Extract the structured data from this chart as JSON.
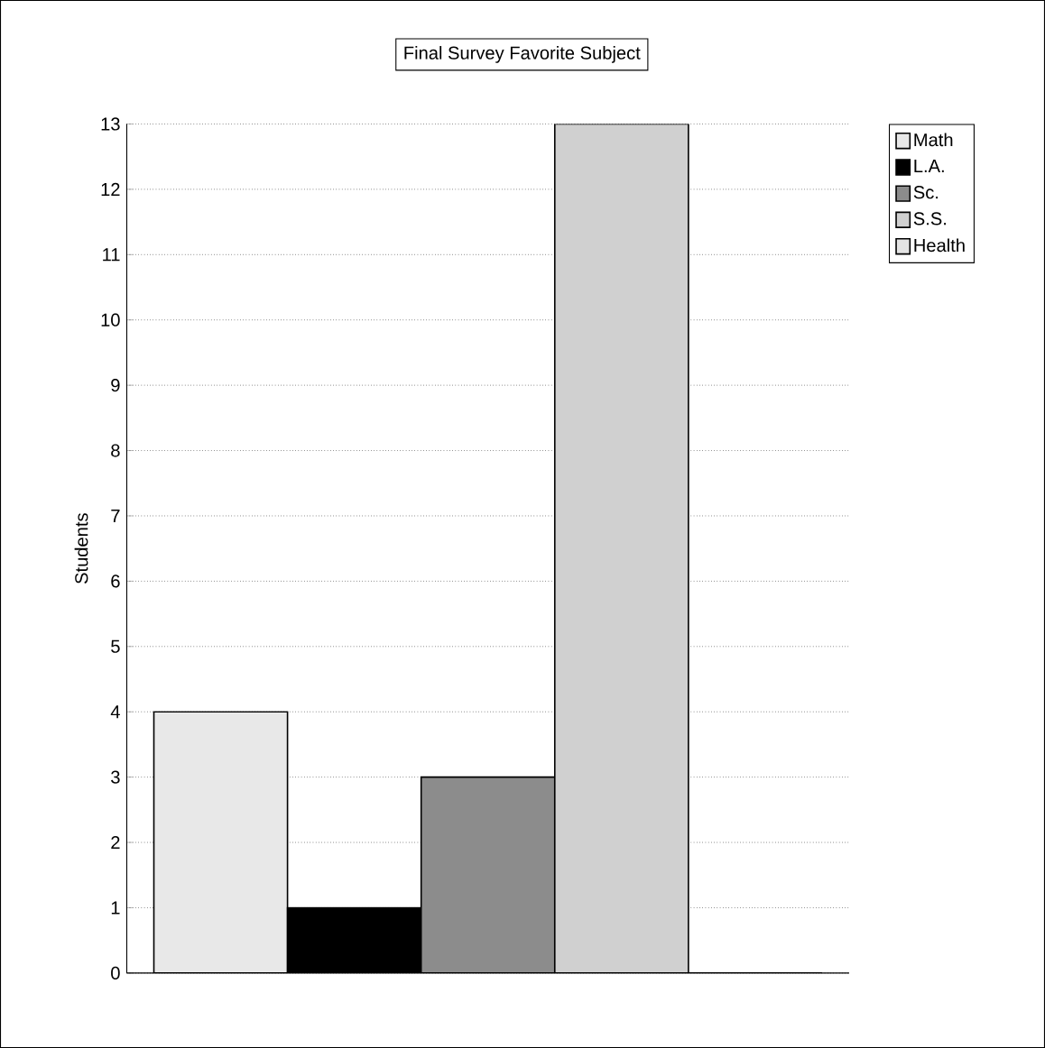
{
  "chart_data": {
    "type": "bar",
    "title": "Final Survey Favorite Subject",
    "ylabel": "Students",
    "categories": [
      null
    ],
    "series": [
      {
        "name": "Math",
        "color": "#e8e8e8",
        "values": [
          4
        ]
      },
      {
        "name": "L.A.",
        "color": "#000000",
        "values": [
          1
        ]
      },
      {
        "name": "Sc.",
        "color": "#8c8c8c",
        "values": [
          3
        ]
      },
      {
        "name": "S.S.",
        "color": "#d0d0d0",
        "values": [
          13
        ]
      },
      {
        "name": "Health",
        "color": "#e4e4e4",
        "values": [
          0
        ]
      }
    ],
    "ylim": [
      0,
      13
    ],
    "yticks": [
      0,
      1,
      2,
      3,
      4,
      5,
      6,
      7,
      8,
      9,
      10,
      11,
      12,
      13
    ],
    "grid": "y",
    "legend": "top right"
  }
}
